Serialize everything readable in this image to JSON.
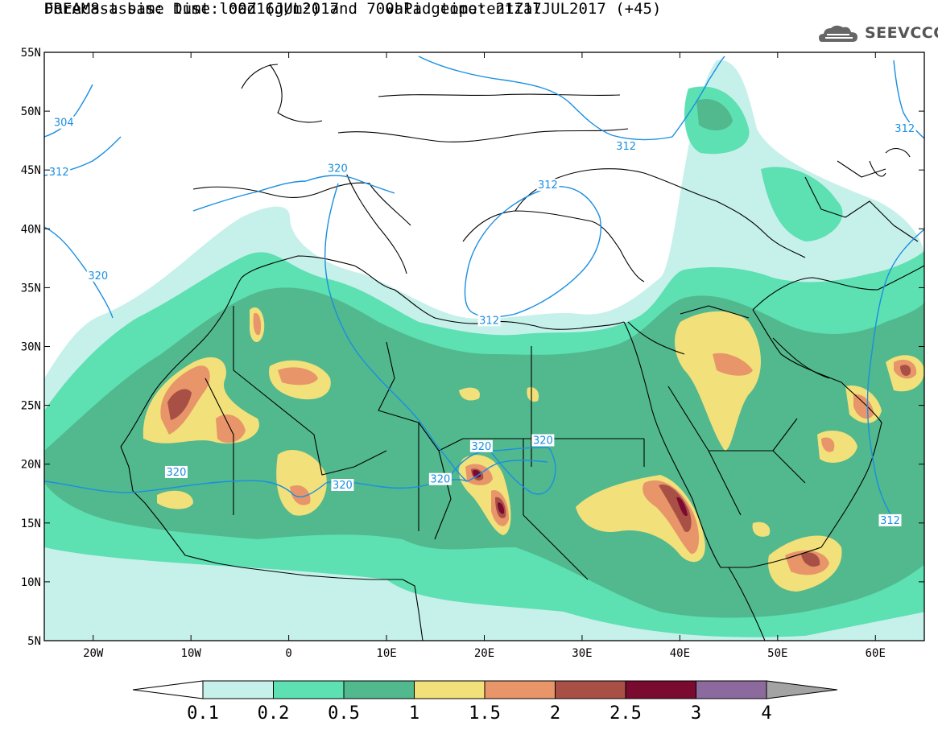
{
  "header": {
    "title_line1": "DREAM8-assim: Dust load (g/m²) and 700hPa geopotential",
    "title_line2": "Forecast base time: 00Z16JUL2017     valid time: 21Z17JUL2017 (+45)",
    "logo_text": "SEEVCCC"
  },
  "map": {
    "lon_range": [
      -25,
      65
    ],
    "lat_range": [
      5,
      55
    ],
    "lat_ticks": [
      {
        "value": 55,
        "label": "55N"
      },
      {
        "value": 50,
        "label": "50N"
      },
      {
        "value": 45,
        "label": "45N"
      },
      {
        "value": 40,
        "label": "40N"
      },
      {
        "value": 35,
        "label": "35N"
      },
      {
        "value": 30,
        "label": "30N"
      },
      {
        "value": 25,
        "label": "25N"
      },
      {
        "value": 20,
        "label": "20N"
      },
      {
        "value": 15,
        "label": "15N"
      },
      {
        "value": 10,
        "label": "10N"
      },
      {
        "value": 5,
        "label": "5N"
      }
    ],
    "lon_ticks": [
      {
        "value": -20,
        "label": "20W"
      },
      {
        "value": -10,
        "label": "10W"
      },
      {
        "value": 0,
        "label": "0"
      },
      {
        "value": 10,
        "label": "10E"
      },
      {
        "value": 20,
        "label": "20E"
      },
      {
        "value": 30,
        "label": "30E"
      },
      {
        "value": 40,
        "label": "40E"
      },
      {
        "value": 50,
        "label": "50E"
      },
      {
        "value": 60,
        "label": "60E"
      }
    ],
    "geopotential_contour_color": "#1a8fe0",
    "contour_labels": [
      {
        "text": "320",
        "lon": -11.5,
        "lat": 19.3
      },
      {
        "text": "320",
        "lon": 5.5,
        "lat": 18.2
      },
      {
        "text": "320",
        "lon": 15.5,
        "lat": 18.7
      },
      {
        "text": "320",
        "lon": 19.7,
        "lat": 21.5
      },
      {
        "text": "320",
        "lon": 26.0,
        "lat": 22.0
      },
      {
        "text": "320",
        "lon": -19.5,
        "lat": 36.0
      },
      {
        "text": "320",
        "lon": 5.0,
        "lat": 45.1
      },
      {
        "text": "312",
        "lon": -23.5,
        "lat": 44.8
      },
      {
        "text": "304",
        "lon": -23.0,
        "lat": 49.0
      },
      {
        "text": "312",
        "lon": 26.5,
        "lat": 43.7
      },
      {
        "text": "312",
        "lon": 20.5,
        "lat": 32.2
      },
      {
        "text": "312",
        "lon": 34.5,
        "lat": 47.0
      },
      {
        "text": "312",
        "lon": 63.0,
        "lat": 48.5
      },
      {
        "text": "312",
        "lon": 61.5,
        "lat": 15.2
      }
    ]
  },
  "colorbar": {
    "bins": [
      {
        "range": "0.1-0.2",
        "color": "#c6f0ea"
      },
      {
        "range": "0.2-0.5",
        "color": "#5de0b2"
      },
      {
        "range": "0.5-1",
        "color": "#52b88e"
      },
      {
        "range": "1-1.5",
        "color": "#f2e07a"
      },
      {
        "range": "1.5-2",
        "color": "#e8956a"
      },
      {
        "range": "2-2.5",
        "color": "#a85045"
      },
      {
        "range": "2.5-3",
        "color": "#7a0a30"
      },
      {
        "range": "3-4",
        "color": "#8c6a9e"
      }
    ],
    "under_color": "#ffffff",
    "over_color": "#a3a3a3",
    "labels": [
      "0.1",
      "0.2",
      "0.5",
      "1",
      "1.5",
      "2",
      "2.5",
      "3",
      "4"
    ]
  }
}
